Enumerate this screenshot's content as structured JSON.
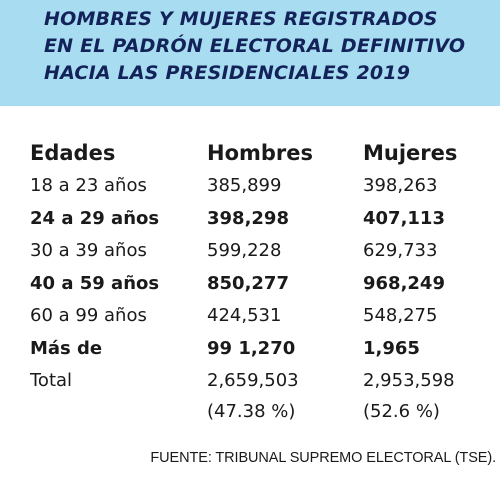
{
  "header": {
    "title": [
      "HOMBRES Y MUJERES REGISTRADOS",
      "EN EL PADRÓN ELECTORAL DEFINITIVO",
      "HACIA LAS PRESIDENCIALES 2019"
    ]
  },
  "table": {
    "columns": [
      "Edades",
      "Hombres",
      "Mujeres"
    ],
    "rows": [
      [
        "18 a 23 años",
        "385,899",
        "398,263"
      ],
      [
        "24 a 29 años",
        "398,298",
        "407,113"
      ],
      [
        "30 a 39 años",
        "599,228",
        "629,733"
      ],
      [
        "40 a 59 años",
        "850,277",
        "968,249"
      ],
      [
        "60 a 99 años",
        "424,531",
        "548,275"
      ],
      [
        "Más de",
        "99 1,270",
        "1,965"
      ],
      [
        "Total",
        "2,659,503",
        "2,953,598"
      ]
    ],
    "percentages": [
      "(47.38 %)",
      "(52.6 %)"
    ]
  },
  "footer": {
    "source": "FUENTE: TRIBUNAL SUPREMO ELECTORAL (TSE)."
  }
}
